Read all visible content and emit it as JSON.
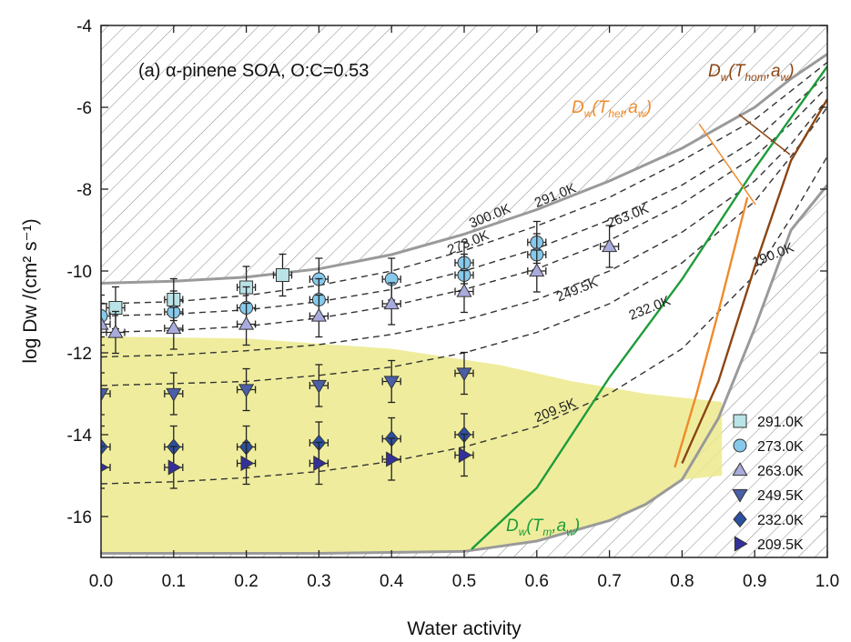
{
  "chart_data": {
    "type": "scatter",
    "title": "(a) α-pinene SOA, O:C=0.53",
    "xlabel": "Water activity",
    "ylabel": "log Dw /(cm² s⁻¹)",
    "xlim": [
      0.0,
      1.0
    ],
    "ylim": [
      -17,
      -4
    ],
    "xticks": [
      0.0,
      0.1,
      0.2,
      0.3,
      0.4,
      0.5,
      0.6,
      0.7,
      0.8,
      0.9,
      1.0
    ],
    "yticks": [
      -16,
      -14,
      -12,
      -10,
      -8,
      -6,
      -4
    ],
    "legend_position": "bottom-right",
    "series": [
      {
        "name": "291.0K",
        "marker": "square",
        "color": "#b9e3e6",
        "x": [
          0.02,
          0.1,
          0.2,
          0.25
        ],
        "y": [
          -10.9,
          -10.7,
          -10.4,
          -10.1
        ]
      },
      {
        "name": "273.0K",
        "marker": "circle",
        "color": "#86c9eb",
        "x": [
          0.0,
          0.1,
          0.2,
          0.3,
          0.3,
          0.4,
          0.5,
          0.5,
          0.6,
          0.6
        ],
        "y": [
          -11.1,
          -11.0,
          -10.9,
          -10.2,
          -10.7,
          -10.2,
          -9.8,
          -10.1,
          -9.3,
          -9.6
        ]
      },
      {
        "name": "263.0K",
        "marker": "triangle-up",
        "color": "#a9abdd",
        "x": [
          0.0,
          0.02,
          0.1,
          0.2,
          0.3,
          0.4,
          0.5,
          0.6,
          0.7
        ],
        "y": [
          -11.3,
          -11.5,
          -11.4,
          -11.3,
          -11.1,
          -10.8,
          -10.5,
          -10.0,
          -9.4
        ]
      },
      {
        "name": "249.5K",
        "marker": "triangle-down",
        "color": "#4a5fa8",
        "x": [
          0.0,
          0.1,
          0.2,
          0.3,
          0.4,
          0.5
        ],
        "y": [
          -13.0,
          -13.0,
          -12.9,
          -12.8,
          -12.7,
          -12.5
        ]
      },
      {
        "name": "232.0K",
        "marker": "diamond",
        "color": "#2b50a0",
        "x": [
          0.0,
          0.1,
          0.2,
          0.3,
          0.4,
          0.5
        ],
        "y": [
          -14.3,
          -14.3,
          -14.3,
          -14.2,
          -14.1,
          -14.0
        ]
      },
      {
        "name": "209.5K",
        "marker": "triangle-right",
        "color": "#33309a",
        "x": [
          0.0,
          0.1,
          0.2,
          0.3,
          0.4,
          0.5
        ],
        "y": [
          -14.8,
          -14.8,
          -14.7,
          -14.7,
          -14.6,
          -14.5
        ]
      }
    ],
    "curves": [
      {
        "label": "300.0K",
        "style": "solid-gray",
        "x": [
          0.0,
          0.1,
          0.2,
          0.3,
          0.4,
          0.5,
          0.6,
          0.7,
          0.8,
          0.9,
          0.95,
          1.0
        ],
        "y": [
          -10.3,
          -10.25,
          -10.15,
          -9.95,
          -9.6,
          -9.1,
          -8.5,
          -7.8,
          -7.0,
          -6.0,
          -5.3,
          -4.7
        ]
      },
      {
        "label": "291.0K",
        "style": "dashed",
        "x": [
          0.0,
          0.1,
          0.2,
          0.3,
          0.4,
          0.5,
          0.6,
          0.7,
          0.8,
          0.9,
          0.95,
          1.0
        ],
        "y": [
          -10.8,
          -10.75,
          -10.6,
          -10.35,
          -10.0,
          -9.5,
          -8.9,
          -8.2,
          -7.3,
          -6.3,
          -5.6,
          -4.9
        ]
      },
      {
        "label": "273.0K",
        "style": "dashed",
        "x": [
          0.0,
          0.1,
          0.2,
          0.3,
          0.4,
          0.5,
          0.6,
          0.7,
          0.8,
          0.9,
          0.95,
          1.0
        ],
        "y": [
          -11.1,
          -11.05,
          -10.95,
          -10.75,
          -10.45,
          -10.0,
          -9.45,
          -8.75,
          -7.9,
          -6.8,
          -6.0,
          -5.2
        ]
      },
      {
        "label": "263.0K",
        "style": "dashed",
        "x": [
          0.0,
          0.1,
          0.2,
          0.3,
          0.4,
          0.5,
          0.6,
          0.7,
          0.8,
          0.9,
          0.95,
          1.0
        ],
        "y": [
          -11.5,
          -11.45,
          -11.35,
          -11.15,
          -10.85,
          -10.45,
          -9.95,
          -9.25,
          -8.35,
          -7.2,
          -6.4,
          -5.5
        ]
      },
      {
        "label": "249.5K",
        "style": "dashed",
        "x": [
          0.0,
          0.1,
          0.2,
          0.3,
          0.4,
          0.5,
          0.6,
          0.7,
          0.8,
          0.9,
          0.95,
          1.0
        ],
        "y": [
          -12.1,
          -12.05,
          -11.95,
          -11.8,
          -11.55,
          -11.2,
          -10.7,
          -10.0,
          -9.05,
          -7.8,
          -6.9,
          -5.8
        ]
      },
      {
        "label": "232.0K",
        "style": "dashed",
        "x": [
          0.0,
          0.1,
          0.2,
          0.3,
          0.4,
          0.5,
          0.6,
          0.7,
          0.8,
          0.9,
          0.95,
          1.0
        ],
        "y": [
          -12.8,
          -12.75,
          -12.7,
          -12.55,
          -12.35,
          -12.0,
          -11.5,
          -10.8,
          -9.8,
          -8.3,
          -7.2,
          -6.0
        ]
      },
      {
        "label": "209.5K",
        "style": "dashed",
        "x": [
          0.0,
          0.1,
          0.2,
          0.3,
          0.4,
          0.5,
          0.6,
          0.7,
          0.8,
          0.9,
          0.95,
          1.0
        ],
        "y": [
          -15.2,
          -15.15,
          -15.05,
          -14.9,
          -14.65,
          -14.3,
          -13.8,
          -13.0,
          -11.9,
          -10.1,
          -8.7,
          -7.2
        ]
      },
      {
        "label": "190.0K",
        "style": "solid-gray",
        "x": [
          0.0,
          0.3,
          0.5,
          0.6,
          0.7,
          0.75,
          0.8,
          0.85,
          0.9,
          0.95,
          1.0
        ],
        "y": [
          -16.9,
          -16.9,
          -16.85,
          -16.6,
          -16.1,
          -15.7,
          -15.1,
          -13.6,
          -11.4,
          -9.0,
          -7.9
        ]
      },
      {
        "label": "Dw(Tm,aw)",
        "style": "green",
        "x": [
          0.51,
          0.6,
          0.7,
          0.8,
          0.9,
          1.0
        ],
        "y": [
          -16.8,
          -15.3,
          -12.6,
          -10.2,
          -7.5,
          -5.0
        ]
      },
      {
        "label": "Dw(Thet,aw)",
        "style": "orange",
        "x": [
          0.79,
          0.82,
          0.85,
          0.88,
          0.89
        ],
        "y": [
          -14.8,
          -13.0,
          -11.0,
          -8.9,
          -8.2
        ]
      },
      {
        "label": "Dw(Thom,aw)",
        "style": "brown",
        "x": [
          0.8,
          0.85,
          0.9,
          0.95,
          1.0
        ],
        "y": [
          -14.7,
          -12.7,
          -9.9,
          -7.3,
          -5.8
        ]
      }
    ],
    "curve_labels": [
      {
        "text": "300.0K",
        "x": 0.51,
        "y": -8.95
      },
      {
        "text": "291.0K",
        "x": 0.6,
        "y": -8.45
      },
      {
        "text": "273.0K",
        "x": 0.48,
        "y": -9.6
      },
      {
        "text": "263.0K",
        "x": 0.7,
        "y": -8.95
      },
      {
        "text": "249.5K",
        "x": 0.63,
        "y": -10.75
      },
      {
        "text": "232.0K",
        "x": 0.73,
        "y": -11.2
      },
      {
        "text": "209.5K",
        "x": 0.6,
        "y": -13.7
      },
      {
        "text": "190.0K",
        "x": 0.9,
        "y": -9.9
      }
    ]
  }
}
